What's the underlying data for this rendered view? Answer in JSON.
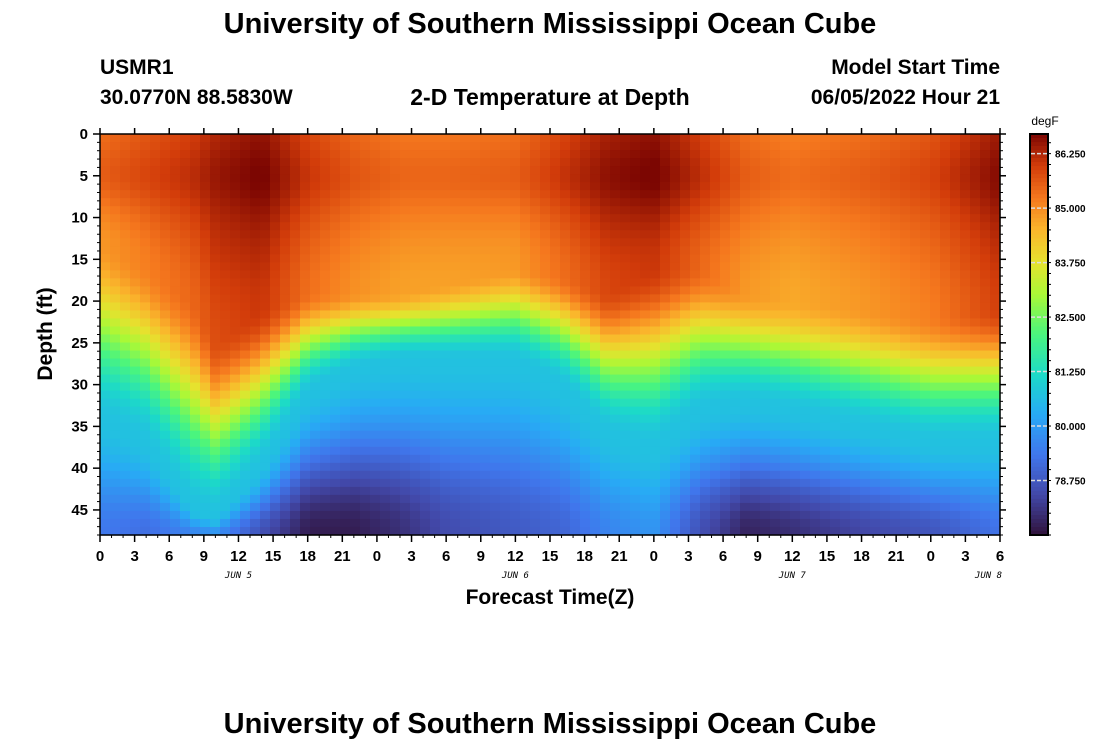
{
  "header": {
    "title": "University of Southern Mississippi Ocean Cube",
    "station": "USMR1",
    "coordinates": "30.0770N  88.5830W",
    "subtitle": "2-D Temperature at Depth",
    "model_start_label": "Model Start Time",
    "model_start_value": "06/05/2022 Hour 21"
  },
  "footer": {
    "title": "University of Southern Mississippi Ocean Cube"
  },
  "chart_data": {
    "type": "heatmap",
    "title": "2-D Temperature at Depth",
    "xlabel": "Forecast Time(Z)",
    "ylabel": "Depth (ft)",
    "x_start_hour": 0,
    "x_end_hour": 78,
    "x_tick_step_hours": 3,
    "x_tick_labels": [
      "0",
      "3",
      "6",
      "9",
      "12",
      "15",
      "18",
      "21",
      "0",
      "3",
      "6",
      "9",
      "12",
      "15",
      "18",
      "21",
      "0",
      "3",
      "6",
      "9",
      "12",
      "15",
      "18",
      "21",
      "0",
      "3",
      "6"
    ],
    "date_labels": [
      {
        "label": "JUN 5",
        "hour": 12
      },
      {
        "label": "JUN 6",
        "hour": 36
      },
      {
        "label": "JUN 7",
        "hour": 60
      },
      {
        "label": "JUN 8",
        "hour": 77
      }
    ],
    "ylim": [
      0,
      48
    ],
    "y_ticks": [
      0,
      5,
      10,
      15,
      20,
      25,
      30,
      35,
      40,
      45
    ],
    "colorbar": {
      "unit": "degF",
      "min": 77.5,
      "max": 86.7,
      "tick_values": [
        86.25,
        85.0,
        83.75,
        82.5,
        81.25,
        80.0,
        78.75
      ],
      "tick_labels": [
        "86.250",
        "85.000",
        "83.750",
        "82.500",
        "81.250",
        "80.000",
        "78.750"
      ]
    },
    "thermocline_profile": {
      "hours": [
        0,
        4,
        8,
        10,
        14,
        18,
        22,
        26,
        30,
        36,
        40,
        44,
        48,
        52,
        56,
        60,
        66,
        72,
        78
      ],
      "warm_layer_depth_ft": [
        13,
        16,
        20,
        25,
        21,
        19,
        19,
        19,
        18,
        16,
        17,
        19,
        16,
        16,
        19,
        20,
        21,
        22,
        21
      ],
      "cool_layer_depth_ft": [
        34,
        37,
        45,
        46,
        40,
        31,
        28,
        27,
        27,
        27,
        30,
        36,
        38,
        33,
        32,
        33,
        35,
        37,
        37
      ],
      "surface_temp_degF": [
        85.3,
        85.6,
        85.9,
        86.2,
        86.5,
        85.8,
        85.4,
        85.2,
        85.2,
        85.3,
        85.8,
        86.3,
        86.5,
        85.9,
        85.3,
        85.1,
        85.3,
        85.6,
        86.4
      ],
      "bottom_temp_degF": [
        79.4,
        79.2,
        79.6,
        79.8,
        78.6,
        77.7,
        77.7,
        78.0,
        78.5,
        78.8,
        79.0,
        79.6,
        79.9,
        78.6,
        77.8,
        78.0,
        78.4,
        78.7,
        79.3
      ]
    }
  }
}
